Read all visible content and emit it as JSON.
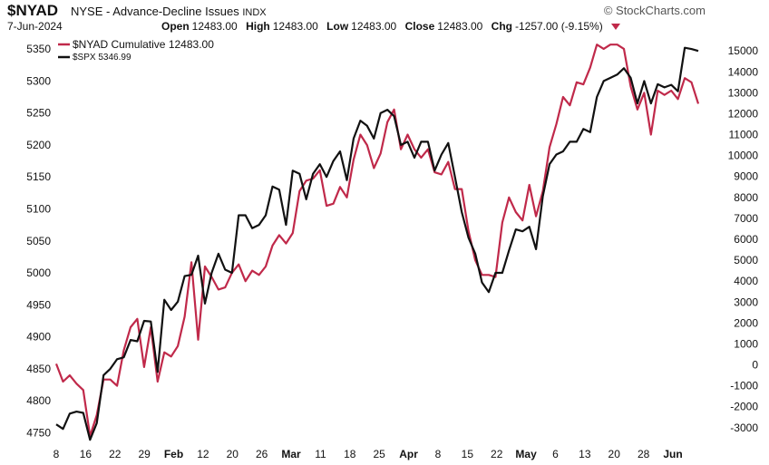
{
  "header": {
    "symbol": "$NYAD",
    "title": "NYSE - Advance-Decline Issues",
    "exchange_code": "INDX",
    "brand": "© StockCharts.com",
    "date": "7-Jun-2024",
    "open_label": "Open",
    "open_value": "12483.00",
    "high_label": "High",
    "high_value": "12483.00",
    "low_label": "Low",
    "low_value": "12483.00",
    "close_label": "Close",
    "close_value": "12483.00",
    "chg_label": "Chg",
    "chg_value": "-1257.00 (-9.15%)"
  },
  "colors": {
    "nyad": "#c0294a",
    "spx": "#111111"
  },
  "chart_data": {
    "type": "line",
    "x_tick_labels": [
      "8",
      "16",
      "22",
      "29",
      "Feb",
      "12",
      "20",
      "26",
      "Mar",
      "11",
      "18",
      "25",
      "Apr",
      "8",
      "15",
      "22",
      "May",
      "6",
      "13",
      "20",
      "28",
      "Jun"
    ],
    "x_tick_bold": [
      false,
      false,
      false,
      false,
      true,
      false,
      false,
      false,
      true,
      false,
      false,
      false,
      true,
      false,
      false,
      false,
      true,
      false,
      false,
      false,
      false,
      true
    ],
    "left_axis": {
      "ticks": [
        4750,
        4800,
        4850,
        4900,
        4950,
        5000,
        5050,
        5100,
        5150,
        5200,
        5250,
        5300,
        5350
      ],
      "range": [
        4735,
        5370
      ]
    },
    "right_axis": {
      "ticks": [
        -3000,
        -2000,
        -1000,
        0,
        1000,
        2000,
        3000,
        4000,
        5000,
        6000,
        7000,
        8000,
        9000,
        10000,
        11000,
        12000,
        13000,
        14000,
        15000
      ],
      "range": [
        -3700,
        15700
      ]
    },
    "series": [
      {
        "name": "$NYAD Cumulative",
        "legend_value": "12483.00",
        "axis": "right",
        "values": [
          50,
          -800,
          -500,
          -900,
          -1200,
          -3400,
          -2400,
          -700,
          -700,
          -1000,
          700,
          1800,
          2200,
          -100,
          1800,
          -800,
          600,
          400,
          900,
          2300,
          4900,
          1200,
          4700,
          4200,
          3600,
          3700,
          4400,
          4800,
          4000,
          4500,
          4300,
          4700,
          5700,
          6200,
          5800,
          6300,
          8300,
          8800,
          8900,
          9300,
          7600,
          7700,
          8500,
          8000,
          9800,
          11000,
          10500,
          9400,
          10100,
          11600,
          12200,
          10300,
          11000,
          10300,
          9900,
          10300,
          9200,
          9100,
          9700,
          8400,
          8400,
          6400,
          5000,
          4300,
          4300,
          4200,
          6800,
          8000,
          7300,
          6900,
          8600,
          7100,
          8300,
          10400,
          11500,
          12800,
          12400,
          13500,
          13400,
          14200,
          15300,
          15100,
          15300,
          15300,
          15100,
          13300,
          12200,
          13000,
          11000,
          13100,
          12900,
          13100,
          12700,
          13700,
          13500,
          12480
        ]
      },
      {
        "name": "$SPX",
        "legend_value": "5346.99",
        "axis": "left",
        "values": [
          4763,
          4756,
          4780,
          4783,
          4781,
          4739,
          4765,
          4840,
          4850,
          4865,
          4868,
          4895,
          4893,
          4925,
          4924,
          4845,
          4958,
          4942,
          4955,
          4995,
          4997,
          5027,
          4952,
          5000,
          5030,
          5005,
          5000,
          5090,
          5090,
          5070,
          5075,
          5090,
          5135,
          5130,
          5075,
          5160,
          5155,
          5115,
          5155,
          5170,
          5150,
          5175,
          5190,
          5145,
          5210,
          5238,
          5230,
          5210,
          5250,
          5255,
          5245,
          5200,
          5205,
          5180,
          5205,
          5205,
          5160,
          5185,
          5203,
          5150,
          5095,
          5055,
          5030,
          4985,
          4970,
          5000,
          5000,
          5035,
          5068,
          5065,
          5072,
          5037,
          5120,
          5170,
          5185,
          5190,
          5205,
          5205,
          5225,
          5220,
          5275,
          5300,
          5305,
          5310,
          5320,
          5305,
          5265,
          5300,
          5265,
          5295,
          5290,
          5294,
          5284,
          5352,
          5350,
          5347
        ]
      }
    ]
  }
}
